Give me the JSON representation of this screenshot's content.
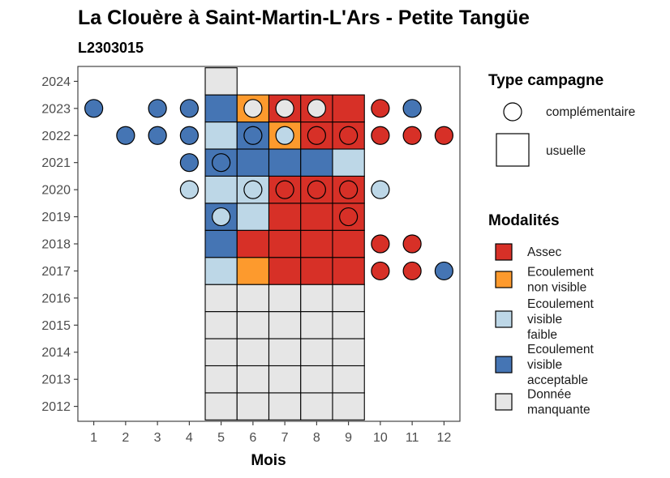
{
  "chart_data": {
    "type": "heatmap",
    "title": "La Clouère à Saint-Martin-L'Ars - Petite Tangüe",
    "subtitle": "L2303015",
    "xlabel": "Mois",
    "ylabel": "",
    "x_ticks": [
      1,
      2,
      3,
      4,
      5,
      6,
      7,
      8,
      9,
      10,
      11,
      12
    ],
    "y_ticks": [
      2012,
      2013,
      2014,
      2015,
      2016,
      2017,
      2018,
      2019,
      2020,
      2021,
      2022,
      2023,
      2024
    ],
    "xlim": [
      0.5,
      12.5
    ],
    "ylim": [
      2011.45,
      2024.55
    ],
    "grid": false,
    "modalities": [
      {
        "key": "assec",
        "label": "Assec",
        "color": "#d73027"
      },
      {
        "key": "nonvisible",
        "label": "Ecoulement non visible",
        "color": "#fd9a2d"
      },
      {
        "key": "faible",
        "label": "Ecoulement visible faible",
        "color": "#bdd7e7"
      },
      {
        "key": "acceptable",
        "label": "Ecoulement visible acceptable",
        "color": "#4575b4"
      },
      {
        "key": "manquante",
        "label": "Donnée manquante",
        "color": "#e6e6e6"
      }
    ],
    "legend": {
      "campaign_title": "Type campagne",
      "campaign_items": [
        {
          "shape": "circle",
          "label": "complémentaire"
        },
        {
          "shape": "square",
          "label": "usuelle"
        }
      ],
      "modalities_title": "Modalités",
      "modality_lines": [
        [
          "Assec"
        ],
        [
          "Ecoulement",
          "non visible"
        ],
        [
          "Ecoulement",
          "visible",
          "faible"
        ],
        [
          "Ecoulement",
          "visible",
          "acceptable"
        ],
        [
          "Donnée",
          "manquante"
        ]
      ],
      "position": "right"
    },
    "usuelle": [
      {
        "year": 2012,
        "months": [
          5,
          6,
          7,
          8,
          9
        ],
        "values": [
          "manquante",
          "manquante",
          "manquante",
          "manquante",
          "manquante"
        ]
      },
      {
        "year": 2013,
        "months": [
          5,
          6,
          7,
          8,
          9
        ],
        "values": [
          "manquante",
          "manquante",
          "manquante",
          "manquante",
          "manquante"
        ]
      },
      {
        "year": 2014,
        "months": [
          5,
          6,
          7,
          8,
          9
        ],
        "values": [
          "manquante",
          "manquante",
          "manquante",
          "manquante",
          "manquante"
        ]
      },
      {
        "year": 2015,
        "months": [
          5,
          6,
          7,
          8,
          9
        ],
        "values": [
          "manquante",
          "manquante",
          "manquante",
          "manquante",
          "manquante"
        ]
      },
      {
        "year": 2016,
        "months": [
          5,
          6,
          7,
          8,
          9
        ],
        "values": [
          "manquante",
          "manquante",
          "manquante",
          "manquante",
          "manquante"
        ]
      },
      {
        "year": 2017,
        "months": [
          5,
          6,
          7,
          8,
          9
        ],
        "values": [
          "faible",
          "nonvisible",
          "assec",
          "assec",
          "assec"
        ]
      },
      {
        "year": 2018,
        "months": [
          5,
          6,
          7,
          8,
          9
        ],
        "values": [
          "acceptable",
          "assec",
          "assec",
          "assec",
          "assec"
        ]
      },
      {
        "year": 2019,
        "months": [
          5,
          6,
          7,
          8,
          9
        ],
        "values": [
          "acceptable",
          "faible",
          "assec",
          "assec",
          "assec"
        ]
      },
      {
        "year": 2020,
        "months": [
          5,
          6,
          7,
          8,
          9
        ],
        "values": [
          "faible",
          "faible",
          "assec",
          "assec",
          "assec"
        ]
      },
      {
        "year": 2021,
        "months": [
          5,
          6,
          7,
          8,
          9
        ],
        "values": [
          "acceptable",
          "acceptable",
          "acceptable",
          "acceptable",
          "faible"
        ]
      },
      {
        "year": 2022,
        "months": [
          5,
          6,
          7,
          8,
          9
        ],
        "values": [
          "faible",
          "acceptable",
          "nonvisible",
          "assec",
          "assec"
        ]
      },
      {
        "year": 2023,
        "months": [
          5,
          6,
          7,
          8,
          9
        ],
        "values": [
          "acceptable",
          "nonvisible",
          "assec",
          "assec",
          "assec"
        ]
      },
      {
        "year": 2024,
        "months": [
          5
        ],
        "values": [
          "manquante"
        ]
      }
    ],
    "complementaire": [
      {
        "month": 1,
        "year": 2023,
        "value": "acceptable"
      },
      {
        "month": 3,
        "year": 2023,
        "value": "acceptable"
      },
      {
        "month": 4,
        "year": 2023,
        "value": "acceptable"
      },
      {
        "month": 6,
        "year": 2023,
        "value": "manquante"
      },
      {
        "month": 7,
        "year": 2023,
        "value": "manquante"
      },
      {
        "month": 8,
        "year": 2023,
        "value": "manquante"
      },
      {
        "month": 10,
        "year": 2023,
        "value": "assec"
      },
      {
        "month": 11,
        "year": 2023,
        "value": "acceptable"
      },
      {
        "month": 2,
        "year": 2022,
        "value": "acceptable"
      },
      {
        "month": 3,
        "year": 2022,
        "value": "acceptable"
      },
      {
        "month": 4,
        "year": 2022,
        "value": "acceptable"
      },
      {
        "month": 6,
        "year": 2022,
        "value": "acceptable"
      },
      {
        "month": 7,
        "year": 2022,
        "value": "faible"
      },
      {
        "month": 8,
        "year": 2022,
        "value": "assec"
      },
      {
        "month": 9,
        "year": 2022,
        "value": "assec"
      },
      {
        "month": 10,
        "year": 2022,
        "value": "assec"
      },
      {
        "month": 11,
        "year": 2022,
        "value": "assec"
      },
      {
        "month": 12,
        "year": 2022,
        "value": "assec"
      },
      {
        "month": 4,
        "year": 2021,
        "value": "acceptable"
      },
      {
        "month": 5,
        "year": 2021,
        "value": "acceptable"
      },
      {
        "month": 4,
        "year": 2020,
        "value": "faible"
      },
      {
        "month": 6,
        "year": 2020,
        "value": "faible"
      },
      {
        "month": 7,
        "year": 2020,
        "value": "assec"
      },
      {
        "month": 8,
        "year": 2020,
        "value": "assec"
      },
      {
        "month": 9,
        "year": 2020,
        "value": "assec"
      },
      {
        "month": 10,
        "year": 2020,
        "value": "faible"
      },
      {
        "month": 5,
        "year": 2019,
        "value": "faible"
      },
      {
        "month": 9,
        "year": 2019,
        "value": "assec"
      },
      {
        "month": 10,
        "year": 2018,
        "value": "assec"
      },
      {
        "month": 11,
        "year": 2018,
        "value": "assec"
      },
      {
        "month": 10,
        "year": 2017,
        "value": "assec"
      },
      {
        "month": 11,
        "year": 2017,
        "value": "assec"
      },
      {
        "month": 12,
        "year": 2017,
        "value": "acceptable"
      }
    ]
  }
}
